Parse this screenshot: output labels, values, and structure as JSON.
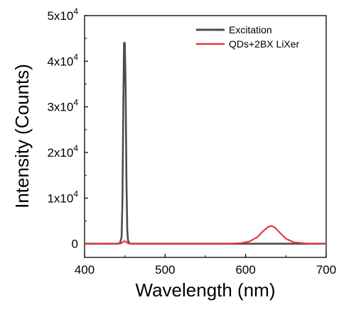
{
  "chart_data": {
    "type": "line",
    "xlabel": "Wavelength (nm)",
    "ylabel": "Intensity (Counts)",
    "xlim": [
      400,
      700
    ],
    "ylim": [
      -3000,
      50000
    ],
    "x_ticks": [
      400,
      500,
      600,
      700
    ],
    "y_ticks": [
      {
        "value": 0,
        "base": "0",
        "exp": ""
      },
      {
        "value": 10000,
        "base": "1x10",
        "exp": "4"
      },
      {
        "value": 20000,
        "base": "2x10",
        "exp": "4"
      },
      {
        "value": 30000,
        "base": "3x10",
        "exp": "4"
      },
      {
        "value": 40000,
        "base": "4x10",
        "exp": "4"
      },
      {
        "value": 50000,
        "base": "5x10",
        "exp": "4"
      }
    ],
    "grid": false,
    "legend_position": "top-right",
    "series": [
      {
        "name": "Excitation",
        "color": "#4d4d4d",
        "x": [
          400,
          440,
          444,
          446,
          447,
          448,
          449,
          450,
          451,
          452,
          453,
          454,
          456,
          460,
          700
        ],
        "y": [
          0,
          0,
          100,
          1500,
          9000,
          28000,
          44000,
          44000,
          34000,
          14000,
          3000,
          600,
          50,
          0,
          0
        ]
      },
      {
        "name": "QDs+2BX LiXer",
        "color": "#e8383d",
        "x": [
          400,
          445,
          448,
          450,
          452,
          455,
          580,
          595,
          605,
          615,
          622,
          628,
          632,
          636,
          642,
          650,
          660,
          675,
          700
        ],
        "y": [
          0,
          30,
          400,
          600,
          300,
          0,
          0,
          150,
          500,
          1500,
          2800,
          3700,
          3900,
          3600,
          2500,
          1100,
          300,
          50,
          0
        ]
      }
    ]
  }
}
